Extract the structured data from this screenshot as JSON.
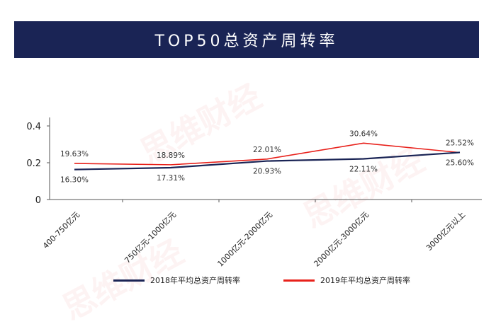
{
  "banner": {
    "title": "TOP50总资产周转率",
    "bg_color": "#1a2455"
  },
  "watermark_text": "思维财经",
  "chart_data": {
    "type": "line",
    "title": "TOP50总资产周转率",
    "categories": [
      "400-750亿元",
      "750亿元-1000亿元",
      "1000亿元-2000亿元",
      "2000亿元-3000亿元",
      "3000亿元以上"
    ],
    "ylim": [
      0,
      0.4
    ],
    "yticks": [
      0,
      0.2,
      0.4
    ],
    "ytick_labels": [
      "0",
      "0.2",
      "0.4"
    ],
    "grid": false,
    "legend_position": "bottom",
    "series": [
      {
        "name": "2018年平均总资产周转率",
        "color": "#1a2455",
        "values": [
          0.163,
          0.1731,
          0.2093,
          0.2211,
          0.256
        ],
        "labels": [
          "16.30%",
          "17.31%",
          "20.93%",
          "22.11%",
          "25.60%"
        ],
        "label_position": [
          "below",
          "below",
          "below",
          "below",
          "below"
        ]
      },
      {
        "name": "2019年平均总资产周转率",
        "color": "#e8211b",
        "values": [
          0.1963,
          0.1889,
          0.2201,
          0.3064,
          0.2552
        ],
        "labels": [
          "19.63%",
          "18.89%",
          "22.01%",
          "30.64%",
          "25.52%"
        ],
        "label_position": [
          "above",
          "above",
          "above",
          "above",
          "above"
        ]
      }
    ]
  }
}
